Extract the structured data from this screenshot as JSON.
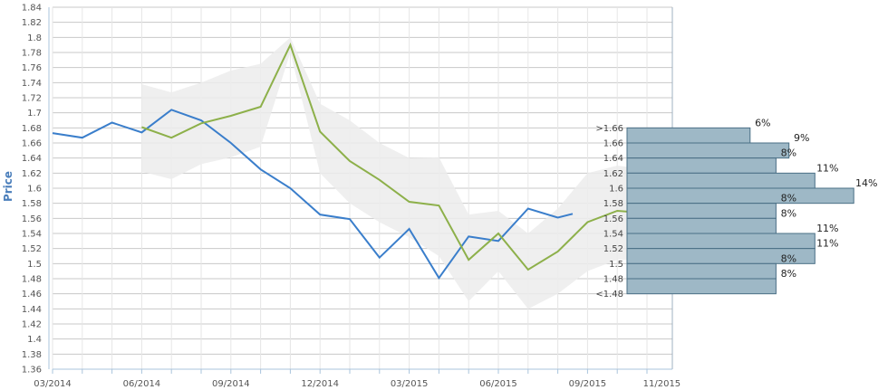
{
  "chart_data": {
    "type": "line",
    "ylabel": "Price",
    "xlabel": "",
    "ylim": [
      1.36,
      1.84
    ],
    "y_ticks": [
      "1.36",
      "1.38",
      "1.4",
      "1.42",
      "1.44",
      "1.46",
      "1.48",
      "1.5",
      "1.52",
      "1.54",
      "1.56",
      "1.58",
      "1.6",
      "1.62",
      "1.64",
      "1.66",
      "1.68",
      "1.7",
      "1.72",
      "1.74",
      "1.76",
      "1.78",
      "1.8",
      "1.82",
      "1.84"
    ],
    "x_ticks": [
      "03/2014",
      "06/2014",
      "09/2014",
      "12/2014",
      "03/2015",
      "06/2015",
      "09/2015",
      "11/2015"
    ],
    "x_tick_months": [
      0,
      3,
      6,
      9,
      12,
      15,
      18,
      20.5
    ],
    "grid": true,
    "colors": {
      "actual": "#3a7ecb",
      "forecast": "#8db04a",
      "band": "#ececec",
      "hist_bar": "#9eb8c6",
      "hist_border": "#4a6f85",
      "ylabel": "#4a7ebb"
    },
    "series": [
      {
        "key": "actual",
        "x": [
          0,
          1,
          2,
          3,
          4,
          5,
          6,
          7,
          8,
          9,
          10,
          11,
          12,
          13,
          14,
          15,
          16,
          17,
          17.5
        ],
        "values": [
          1.673,
          1.667,
          1.687,
          1.674,
          1.704,
          1.69,
          1.66,
          1.625,
          1.6,
          1.565,
          1.559,
          1.508,
          1.546,
          1.481,
          1.536,
          1.53,
          1.573,
          1.561,
          1.566
        ]
      },
      {
        "key": "forecast",
        "x": [
          3,
          4,
          5,
          6,
          7,
          8,
          9,
          10,
          11,
          12,
          13,
          14,
          15,
          16,
          17,
          18,
          19,
          20,
          20.5
        ],
        "values": [
          1.681,
          1.667,
          1.686,
          1.696,
          1.708,
          1.79,
          1.675,
          1.636,
          1.611,
          1.582,
          1.577,
          1.505,
          1.54,
          1.492,
          1.516,
          1.555,
          1.57,
          1.567,
          1.57
        ]
      }
    ],
    "band": {
      "x": [
        3,
        4,
        5,
        6,
        7,
        8,
        9,
        10,
        11,
        12,
        13,
        14,
        15,
        16,
        17,
        18,
        19,
        20,
        20.5
      ],
      "upper": [
        1.738,
        1.727,
        1.74,
        1.756,
        1.765,
        1.8,
        1.712,
        1.69,
        1.66,
        1.64,
        1.641,
        1.565,
        1.57,
        1.54,
        1.573,
        1.62,
        1.63,
        1.625,
        1.625
      ],
      "lower": [
        1.622,
        1.612,
        1.632,
        1.641,
        1.655,
        1.78,
        1.62,
        1.58,
        1.555,
        1.535,
        1.51,
        1.45,
        1.49,
        1.44,
        1.46,
        1.49,
        1.505,
        1.505,
        1.51
      ]
    },
    "histogram": {
      "bins": [
        {
          "label": ">1.66",
          "center": 1.67,
          "percent": 6,
          "text": "6%"
        },
        {
          "label": "1.66",
          "center": 1.65,
          "percent": 9,
          "text": "9%"
        },
        {
          "label": "1.64",
          "center": 1.63,
          "percent": 8,
          "text": "8%"
        },
        {
          "label": "1.62",
          "center": 1.61,
          "percent": 11,
          "text": "11%"
        },
        {
          "label": "1.6",
          "center": 1.59,
          "percent": 14,
          "text": "14%"
        },
        {
          "label": "1.58",
          "center": 1.57,
          "percent": 8,
          "text": "8%"
        },
        {
          "label": "1.56",
          "center": 1.55,
          "percent": 8,
          "text": "8%"
        },
        {
          "label": "1.54",
          "center": 1.53,
          "percent": 11,
          "text": "11%"
        },
        {
          "label": "1.52",
          "center": 1.51,
          "percent": 11,
          "text": "11%"
        },
        {
          "label": "1.5",
          "center": 1.49,
          "percent": 8,
          "text": "8%"
        },
        {
          "label": "1.48",
          "center": 1.47,
          "percent": 8,
          "text": "8%"
        },
        {
          "label": "<1.48",
          "center": null,
          "percent": null,
          "text": ""
        }
      ]
    }
  }
}
